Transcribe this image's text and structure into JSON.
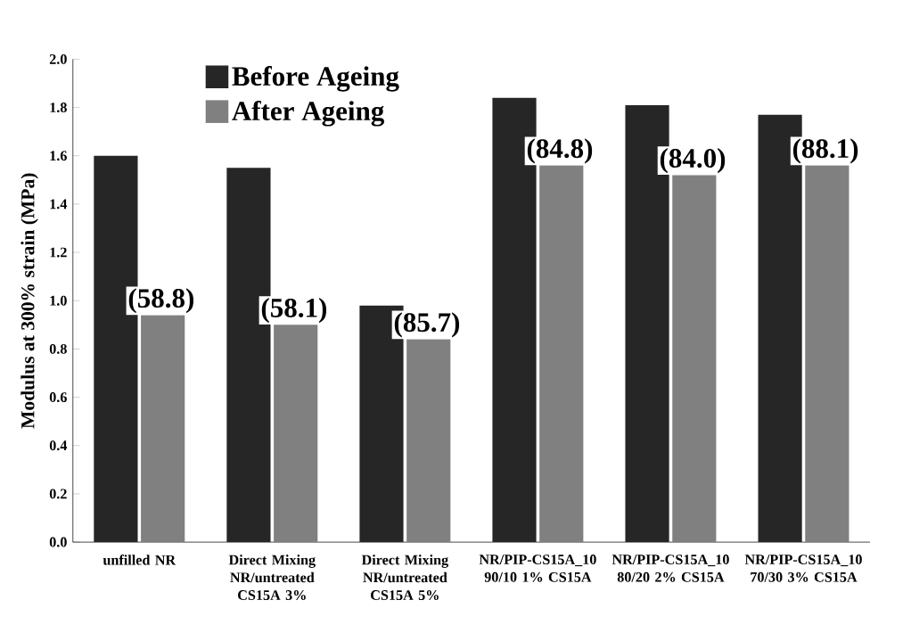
{
  "chart_data": {
    "type": "bar",
    "ylabel": "Modulus at 300% strain (MPa)",
    "categories": [
      "unfilled NR",
      "Direct Mixing NR/untreated CS15A 3%",
      "Direct Mixing NR/untreated CS15A 5%",
      "NR/PIP-CS15A_10 90/10 1% CS15A",
      "NR/PIP-CS15A_10 80/20 2% CS15A",
      "NR/PIP-CS15A_10 70/30 3% CS15A"
    ],
    "series": [
      {
        "name": "Before Ageing",
        "color": "#262626",
        "values": [
          1.6,
          1.55,
          0.98,
          1.84,
          1.81,
          1.77
        ]
      },
      {
        "name": "After Ageing",
        "color": "#808080",
        "values": [
          0.94,
          0.9,
          0.84,
          1.56,
          1.52,
          1.56
        ]
      }
    ],
    "ylim": [
      0,
      2.0
    ],
    "yticks": [
      {
        "value": 0,
        "label": "0.0"
      },
      {
        "value": 0.2,
        "label": "0.2"
      },
      {
        "value": 0.4,
        "label": "0.4"
      },
      {
        "value": 0.6,
        "label": "0.6"
      },
      {
        "value": 0.8,
        "label": "0.8"
      },
      {
        "value": 1.0,
        "label": "1.0"
      },
      {
        "value": 1.2,
        "label": "1.2"
      },
      {
        "value": 1.4,
        "label": "1.4"
      },
      {
        "value": 1.6,
        "label": "1.6"
      },
      {
        "value": 1.8,
        "label": "1.8"
      },
      {
        "value": 2.0,
        "label": "2.0"
      }
    ],
    "annotations": [
      {
        "text": "(58.8)",
        "x": "unfilled NR",
        "y": 0.94
      },
      {
        "text": "(58.1)",
        "x": "Direct Mixing NR/untreated CS15A 3%",
        "y": 0.9
      },
      {
        "text": "(85.7)",
        "x": "Direct Mixing NR/untreated CS15A 5%",
        "y": 0.84
      },
      {
        "text": "(84.8)",
        "x": "NR/PIP-CS15A_10 90/10 1% CS15A",
        "y": 1.56
      },
      {
        "text": "(84.0)",
        "x": "NR/PIP-CS15A_10 80/20 2% CS15A",
        "y": 1.52
      },
      {
        "text": "(88.1)",
        "x": "NR/PIP-CS15A_10 70/30 3% CS15A",
        "y": 1.56
      }
    ],
    "grid": false,
    "legend": "top"
  }
}
